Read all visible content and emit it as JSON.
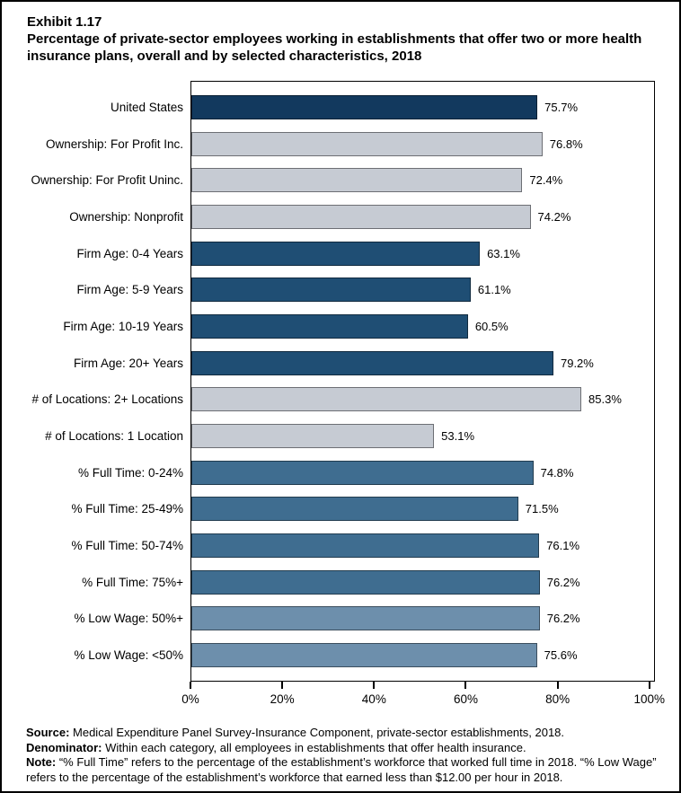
{
  "exhibit": {
    "number": "Exhibit 1.17",
    "title": "Percentage of private-sector employees working in establishments that offer two or more health insurance plans, overall and by selected characteristics, 2018"
  },
  "chart_data": {
    "type": "bar",
    "orientation": "horizontal",
    "title": "Percentage of private-sector employees working in establishments that offer two or more health insurance plans, overall and by selected characteristics, 2018",
    "xlabel": "",
    "ylabel": "",
    "xlim": [
      0,
      100
    ],
    "x_tick_values": [
      0,
      20,
      40,
      60,
      80,
      100
    ],
    "x_tick_labels": [
      "0%",
      "20%",
      "40%",
      "60%",
      "80%",
      "100%"
    ],
    "grid": false,
    "legend": "none",
    "categories": [
      "United States",
      "Ownership: For Profit Inc.",
      "Ownership: For Profit Uninc.",
      "Ownership: Nonprofit",
      "Firm Age: 0-4 Years",
      "Firm Age: 5-9 Years",
      "Firm Age: 10-19 Years",
      "Firm Age: 20+ Years",
      "# of Locations: 2+ Locations",
      "# of Locations: 1 Location",
      "% Full Time: 0-24%",
      "% Full Time: 25-49%",
      "% Full Time: 50-74%",
      "% Full Time: 75%+",
      "% Low Wage: 50%+",
      "% Low Wage: <50%"
    ],
    "values": [
      75.7,
      76.8,
      72.4,
      74.2,
      63.1,
      61.1,
      60.5,
      79.2,
      85.3,
      53.1,
      74.8,
      71.5,
      76.1,
      76.2,
      76.2,
      75.6
    ],
    "value_labels": [
      "75.7%",
      "76.8%",
      "72.4%",
      "74.2%",
      "63.1%",
      "61.1%",
      "60.5%",
      "79.2%",
      "85.3%",
      "53.1%",
      "74.8%",
      "71.5%",
      "76.1%",
      "76.2%",
      "76.2%",
      "75.6%"
    ],
    "bar_colors": [
      "#12395E",
      "#C6CBD3",
      "#C6CBD3",
      "#C6CBD3",
      "#1F4E74",
      "#1F4E74",
      "#1F4E74",
      "#1F4E74",
      "#C6CBD3",
      "#C6CBD3",
      "#3F6D90",
      "#3F6D90",
      "#3F6D90",
      "#3F6D90",
      "#6D8FAC",
      "#6D8FAC"
    ]
  },
  "palette": {
    "united_states": "#12395E",
    "ownership_and_locations": "#C6CBD3",
    "firm_age": "#1F4E74",
    "full_time": "#3F6D90",
    "low_wage": "#6D8FAC",
    "frame_border": "#000000"
  },
  "footnotes": {
    "source_label": "Source:",
    "source_text": " Medical Expenditure Panel Survey-Insurance Component, private-sector establishments, 2018.",
    "denominator_label": "Denominator:",
    "denominator_text": " Within each category, all employees in establishments that offer health insurance.",
    "note_label": "Note:",
    "note_text": " “% Full Time” refers to the percentage of the establishment’s workforce that worked full time in 2018. “% Low Wage” refers to the percentage of the establishment’s workforce that earned less than $12.00 per hour in 2018."
  }
}
